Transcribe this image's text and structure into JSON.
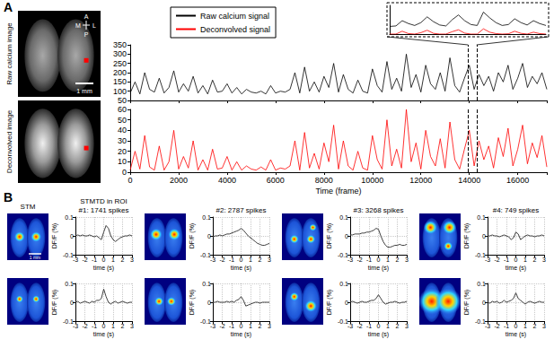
{
  "panels": {
    "A": {
      "label": "A",
      "image_labels": [
        "Raw calcium image",
        "Deconvolved image"
      ],
      "scale_bar": "1 mm",
      "compass": {
        "up": "A",
        "down": "P",
        "left": "M",
        "right": "L"
      }
    },
    "B": {
      "label": "B",
      "image_title": "STM",
      "chart_title": "STMTD in ROI",
      "scale_bar": "1 mm"
    }
  },
  "chart_data": [
    {
      "type": "line",
      "legend": "upper left",
      "tick_labels": "y",
      "grid": false,
      "x": [
        0,
        200,
        400,
        600,
        800,
        1000,
        1200,
        1400,
        1600,
        1800,
        2000,
        2200,
        2400,
        2600,
        2800,
        3000,
        3200,
        3400,
        3600,
        3800,
        4000,
        4200,
        4400,
        4600,
        4800,
        5000,
        5200,
        5400,
        5600,
        5800,
        6000,
        6200,
        6400,
        6600,
        6800,
        7000,
        7200,
        7400,
        7600,
        7800,
        8000,
        8200,
        8400,
        8600,
        8800,
        9000,
        9200,
        9400,
        9600,
        9800,
        10000,
        10200,
        10400,
        10600,
        10800,
        11000,
        11200,
        11400,
        11600,
        11800,
        12000,
        12200,
        12400,
        12600,
        12800,
        13000,
        13200,
        13400,
        13600,
        13800,
        14000,
        14200,
        14400,
        14600,
        14800,
        15000,
        15200,
        15400,
        15600,
        15800,
        16000,
        16200,
        16400,
        16600,
        16800,
        17000,
        17200
      ],
      "series": [
        {
          "name": "Raw calcium signal",
          "color": "#000000",
          "values": [
            90,
            150,
            85,
            200,
            110,
            95,
            170,
            90,
            120,
            210,
            95,
            140,
            100,
            180,
            90,
            130,
            85,
            160,
            95,
            100,
            140,
            90,
            120,
            85,
            110,
            95,
            90,
            100,
            85,
            130,
            90,
            100,
            95,
            110,
            200,
            90,
            230,
            100,
            150,
            95,
            180,
            120,
            250,
            95,
            190,
            110,
            90,
            160,
            100,
            90,
            220,
            130,
            95,
            260,
            110,
            170,
            100,
            300,
            120,
            190,
            95,
            240,
            140,
            110,
            200,
            100,
            280,
            130,
            95,
            170,
            240,
            110,
            190,
            130,
            180,
            100,
            200,
            150,
            240,
            110,
            170,
            250,
            120,
            180,
            140,
            200,
            110
          ]
        }
      ],
      "zoom_window": [
        13950,
        14300
      ],
      "xlim": [
        0,
        17200
      ],
      "xticks": [
        0,
        2000,
        4000,
        6000,
        8000,
        10000,
        12000,
        14000,
        16000
      ],
      "ylim": [
        50,
        350
      ],
      "yticks": [
        50,
        100,
        150,
        200,
        250,
        300,
        350
      ]
    },
    {
      "type": "line",
      "xlabel": "Time (frame)",
      "grid": false,
      "x": [
        0,
        200,
        400,
        600,
        800,
        1000,
        1200,
        1400,
        1600,
        1800,
        2000,
        2200,
        2400,
        2600,
        2800,
        3000,
        3200,
        3400,
        3600,
        3800,
        4000,
        4200,
        4400,
        4600,
        4800,
        5000,
        5200,
        5400,
        5600,
        5800,
        6000,
        6200,
        6400,
        6600,
        6800,
        7000,
        7200,
        7400,
        7600,
        7800,
        8000,
        8200,
        8400,
        8600,
        8800,
        9000,
        9200,
        9400,
        9600,
        9800,
        10000,
        10200,
        10400,
        10600,
        10800,
        11000,
        11200,
        11400,
        11600,
        11800,
        12000,
        12200,
        12400,
        12600,
        12800,
        13000,
        13200,
        13400,
        13600,
        13800,
        14000,
        14200,
        14400,
        14600,
        14800,
        15000,
        15200,
        15400,
        15600,
        15800,
        16000,
        16200,
        16400,
        16600,
        16800,
        17000,
        17200
      ],
      "series": [
        {
          "name": "Deconvolved signal",
          "color": "#ff0000",
          "values": [
            2,
            20,
            3,
            35,
            5,
            2,
            25,
            2,
            10,
            40,
            3,
            15,
            4,
            30,
            2,
            12,
            2,
            22,
            3,
            4,
            15,
            2,
            10,
            2,
            6,
            3,
            2,
            5,
            2,
            12,
            2,
            4,
            3,
            6,
            30,
            2,
            38,
            4,
            18,
            3,
            28,
            10,
            45,
            3,
            30,
            6,
            2,
            20,
            4,
            2,
            35,
            12,
            3,
            50,
            6,
            22,
            4,
            60,
            10,
            28,
            3,
            40,
            15,
            6,
            32,
            4,
            48,
            12,
            3,
            22,
            40,
            6,
            30,
            12,
            25,
            4,
            33,
            15,
            42,
            6,
            22,
            45,
            8,
            28,
            14,
            35,
            5
          ]
        }
      ],
      "zoom_window": [
        13950,
        14300
      ],
      "xlim": [
        0,
        17200
      ],
      "xticks": [
        0,
        2000,
        4000,
        6000,
        8000,
        10000,
        12000,
        14000,
        16000
      ],
      "ylim": [
        0,
        60
      ],
      "yticks": [
        0,
        10,
        20,
        30,
        40,
        50,
        60
      ]
    },
    {
      "type": "line",
      "tick_labels": false,
      "grid": false,
      "x": [
        13950,
        13964,
        13978,
        13992,
        14006,
        14020,
        14034,
        14048,
        14062,
        14076,
        14090,
        14104,
        14118,
        14132,
        14146,
        14160,
        14174,
        14188,
        14202,
        14216,
        14230,
        14244,
        14258,
        14272,
        14286,
        14300
      ],
      "series": [
        {
          "color": "#000000",
          "values": [
            80,
            85,
            140,
            110,
            90,
            120,
            180,
            130,
            95,
            85,
            150,
            200,
            140,
            100,
            90,
            230,
            170,
            120,
            90,
            100,
            160,
            120,
            95,
            140,
            110,
            90
          ]
        },
        {
          "color": "#ff0000",
          "values": [
            0,
            0,
            30,
            5,
            0,
            15,
            40,
            8,
            0,
            0,
            25,
            45,
            10,
            0,
            0,
            55,
            20,
            5,
            0,
            3,
            30,
            8,
            0,
            20,
            5,
            0
          ]
        }
      ],
      "xlim": [
        13950,
        14300
      ],
      "ylim": [
        0,
        300
      ]
    },
    {
      "type": "line",
      "title": "#1: 1741 spikes",
      "xlabel": "time (s)",
      "ylabel": "DF/F (%)",
      "grid": true,
      "x": [
        -3,
        -2.75,
        -2.5,
        -2.25,
        -2,
        -1.75,
        -1.5,
        -1.25,
        -1,
        -0.75,
        -0.5,
        -0.25,
        0,
        0.25,
        0.5,
        0.75,
        1,
        1.25,
        1.5,
        1.75,
        2,
        2.25,
        2.5,
        2.75,
        3
      ],
      "series": [
        {
          "color": "#404040",
          "values": [
            0,
            0.005,
            0,
            0.005,
            0,
            0,
            0.005,
            0,
            -0.005,
            0,
            -0.01,
            -0.02,
            0.02,
            0.055,
            0.04,
            0,
            -0.02,
            -0.03,
            -0.02,
            -0.01,
            -0.005,
            0,
            0,
            0.005,
            0
          ]
        }
      ],
      "xlim": [
        -3,
        3
      ],
      "xticks": [
        -3,
        -2,
        -1,
        0,
        1,
        2,
        3
      ],
      "ylim": [
        -0.1,
        0.1
      ],
      "yticks": [
        -0.1,
        0,
        0.1
      ]
    },
    {
      "type": "line",
      "title": "#2: 2787 spikes",
      "xlabel": "time (s)",
      "ylabel": "DF/F (%)",
      "grid": true,
      "x": [
        -3,
        -2.75,
        -2.5,
        -2.25,
        -2,
        -1.75,
        -1.5,
        -1.25,
        -1,
        -0.75,
        -0.5,
        -0.25,
        0,
        0.25,
        0.5,
        0.75,
        1,
        1.25,
        1.5,
        1.75,
        2,
        2.25,
        2.5,
        2.75,
        3
      ],
      "series": [
        {
          "color": "#404040",
          "values": [
            -0.005,
            0,
            0,
            0.005,
            0,
            0.005,
            0.01,
            0.01,
            0.015,
            0.02,
            0.025,
            0.03,
            0.04,
            0.03,
            0.015,
            0,
            -0.01,
            -0.02,
            -0.03,
            -0.04,
            -0.045,
            -0.05,
            -0.05,
            -0.045,
            -0.04
          ]
        }
      ],
      "xlim": [
        -3,
        3
      ],
      "xticks": [
        -3,
        -2,
        -1,
        0,
        1,
        2,
        3
      ],
      "ylim": [
        -0.1,
        0.1
      ],
      "yticks": [
        -0.1,
        0,
        0.1
      ]
    },
    {
      "type": "line",
      "title": "#3: 3268 spikes",
      "xlabel": "time (s)",
      "ylabel": "DF/F (%)",
      "grid": true,
      "x": [
        -3,
        -2.75,
        -2.5,
        -2.25,
        -2,
        -1.75,
        -1.5,
        -1.25,
        -1,
        -0.75,
        -0.5,
        -0.25,
        0,
        0.25,
        0.5,
        0.75,
        1,
        1.25,
        1.5,
        1.75,
        2,
        2.25,
        2.5,
        2.75,
        3
      ],
      "series": [
        {
          "color": "#404040",
          "values": [
            0.005,
            0.005,
            0.01,
            0.01,
            0.01,
            0.015,
            0.015,
            0.02,
            0.02,
            0.025,
            0.03,
            0.04,
            0.035,
            0,
            -0.03,
            -0.05,
            -0.06,
            -0.06,
            -0.055,
            -0.05,
            -0.05,
            -0.045,
            -0.05,
            -0.05,
            -0.045
          ]
        }
      ],
      "xlim": [
        -3,
        3
      ],
      "xticks": [
        -3,
        -2,
        -1,
        0,
        1,
        2,
        3
      ],
      "ylim": [
        -0.1,
        0.1
      ],
      "yticks": [
        -0.1,
        0,
        0.1
      ]
    },
    {
      "type": "line",
      "title": "#4: 749 spikes",
      "xlabel": "time (s)",
      "ylabel": "DF/F (%)",
      "grid": true,
      "x": [
        -3,
        -2.75,
        -2.5,
        -2.25,
        -2,
        -1.75,
        -1.5,
        -1.25,
        -1,
        -0.75,
        -0.5,
        -0.25,
        0,
        0.25,
        0.5,
        0.75,
        1,
        1.25,
        1.5,
        1.75,
        2,
        2.25,
        2.5,
        2.75,
        3
      ],
      "series": [
        {
          "color": "#404040",
          "values": [
            0,
            0,
            0.005,
            0,
            0,
            -0.005,
            0,
            0.005,
            0,
            -0.005,
            -0.02,
            -0.01,
            0.02,
            0.01,
            -0.02,
            -0.01,
            0,
            0.005,
            0,
            0,
            -0.005,
            0,
            0,
            0.005,
            0
          ]
        }
      ],
      "xlim": [
        -3,
        3
      ],
      "xticks": [
        -3,
        -2,
        -1,
        0,
        1,
        2,
        3
      ],
      "ylim": [
        -0.1,
        0.1
      ],
      "yticks": [
        -0.1,
        0,
        0.1
      ]
    },
    {
      "type": "line",
      "xlabel": "time (s)",
      "ylabel": "DF/F (%)",
      "grid": true,
      "x": [
        -3,
        -2.75,
        -2.5,
        -2.25,
        -2,
        -1.75,
        -1.5,
        -1.25,
        -1,
        -0.75,
        -0.5,
        -0.25,
        0,
        0.25,
        0.5,
        0.75,
        1,
        1.25,
        1.5,
        1.75,
        2,
        2.25,
        2.5,
        2.75,
        3
      ],
      "series": [
        {
          "color": "#404040",
          "values": [
            0,
            0.005,
            -0.005,
            0,
            0.005,
            0,
            -0.005,
            0.005,
            0,
            0.01,
            0.01,
            0.02,
            0.07,
            0.03,
            0,
            -0.01,
            0,
            0.005,
            -0.005,
            0,
            0.005,
            0,
            -0.005,
            0,
            0
          ]
        }
      ],
      "xlim": [
        -3,
        3
      ],
      "xticks": [
        -3,
        -2,
        -1,
        0,
        1,
        2,
        3
      ],
      "ylim": [
        -0.1,
        0.1
      ],
      "yticks": [
        -0.1,
        0,
        0.1
      ]
    },
    {
      "type": "line",
      "xlabel": "time (s)",
      "ylabel": "DF/F (%)",
      "grid": true,
      "x": [
        -3,
        -2.75,
        -2.5,
        -2.25,
        -2,
        -1.75,
        -1.5,
        -1.25,
        -1,
        -0.75,
        -0.5,
        -0.25,
        0,
        0.25,
        0.5,
        0.75,
        1,
        1.25,
        1.5,
        1.75,
        2,
        2.25,
        2.5,
        2.75,
        3
      ],
      "series": [
        {
          "color": "#404040",
          "values": [
            0,
            0,
            0.005,
            0,
            0,
            0,
            0.005,
            0,
            0.005,
            0,
            0.01,
            0.015,
            0.03,
            0.01,
            -0.02,
            -0.015,
            -0.01,
            -0.005,
            0,
            0,
            -0.005,
            0,
            0,
            0,
            0
          ]
        }
      ],
      "xlim": [
        -3,
        3
      ],
      "xticks": [
        -3,
        -2,
        -1,
        0,
        1,
        2,
        3
      ],
      "ylim": [
        -0.1,
        0.1
      ],
      "yticks": [
        -0.1,
        0,
        0.1
      ]
    },
    {
      "type": "line",
      "xlabel": "time (s)",
      "ylabel": "DF/F (%)",
      "grid": true,
      "x": [
        -3,
        -2.75,
        -2.5,
        -2.25,
        -2,
        -1.75,
        -1.5,
        -1.25,
        -1,
        -0.75,
        -0.5,
        -0.25,
        0,
        0.25,
        0.5,
        0.75,
        1,
        1.25,
        1.5,
        1.75,
        2,
        2.25,
        2.5,
        2.75,
        3
      ],
      "series": [
        {
          "color": "#404040",
          "values": [
            0,
            0.005,
            0,
            -0.005,
            0,
            0.005,
            0,
            0,
            0.005,
            0.01,
            0.01,
            0.02,
            0.04,
            0.02,
            0,
            -0.01,
            -0.005,
            0,
            0,
            0.005,
            0,
            -0.005,
            0,
            0,
            0.005
          ]
        }
      ],
      "xlim": [
        -3,
        3
      ],
      "xticks": [
        -3,
        -2,
        -1,
        0,
        1,
        2,
        3
      ],
      "ylim": [
        -0.1,
        0.1
      ],
      "yticks": [
        -0.1,
        0,
        0.1
      ]
    },
    {
      "type": "line",
      "xlabel": "time (s)",
      "ylabel": "DF/F (%)",
      "grid": true,
      "x": [
        -3,
        -2.75,
        -2.5,
        -2.25,
        -2,
        -1.75,
        -1.5,
        -1.25,
        -1,
        -0.75,
        -0.5,
        -0.25,
        0,
        0.25,
        0.5,
        0.75,
        1,
        1.25,
        1.5,
        1.75,
        2,
        2.25,
        2.5,
        2.75,
        3
      ],
      "series": [
        {
          "color": "#404040",
          "values": [
            0,
            -0.005,
            0.005,
            0,
            0.005,
            -0.005,
            0,
            0.01,
            0,
            0.005,
            0.01,
            0.02,
            0.05,
            0.02,
            0.01,
            0,
            -0.01,
            0,
            0.005,
            0,
            -0.005,
            0,
            0.005,
            0,
            0
          ]
        }
      ],
      "xlim": [
        -3,
        3
      ],
      "xticks": [
        -3,
        -2,
        -1,
        0,
        1,
        2,
        3
      ],
      "ylim": [
        -0.1,
        0.1
      ],
      "yticks": [
        -0.1,
        0,
        0.1
      ]
    }
  ]
}
